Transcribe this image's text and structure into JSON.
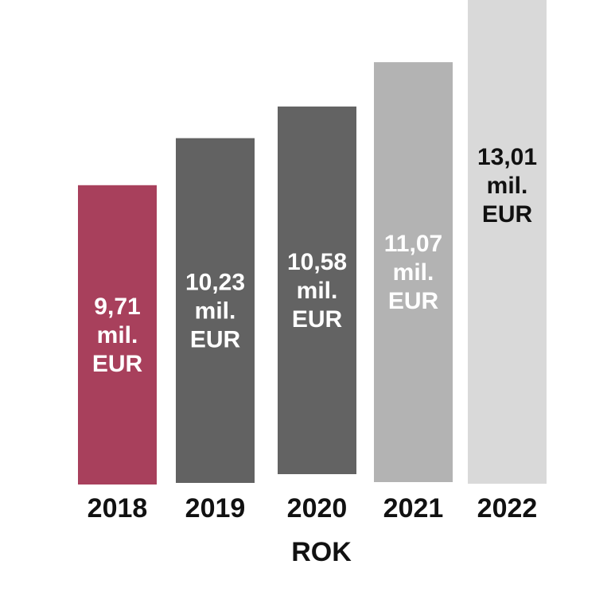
{
  "chart_data": {
    "type": "bar",
    "title": "",
    "xlabel": "ROK",
    "ylabel": "",
    "categories": [
      "2018",
      "2019",
      "2020",
      "2021",
      "2022"
    ],
    "values": [
      9.71,
      10.23,
      10.58,
      11.07,
      13.01
    ],
    "data_labels": [
      [
        "9,71",
        "mil.",
        "EUR"
      ],
      [
        "10,23",
        "mil.",
        "EUR"
      ],
      [
        "10,58",
        "mil.",
        "EUR"
      ],
      [
        "11,07",
        "mil.",
        "EUR"
      ],
      [
        "13,01",
        "mil.",
        "EUR"
      ]
    ],
    "bar_colors": [
      "#a8405c",
      "#626262",
      "#636363",
      "#b3b3b3",
      "#d9d9d9"
    ],
    "label_colors": [
      "#ffffff",
      "#ffffff",
      "#ffffff",
      "#ffffff",
      "#111111"
    ],
    "grid": false,
    "legend": "none"
  }
}
